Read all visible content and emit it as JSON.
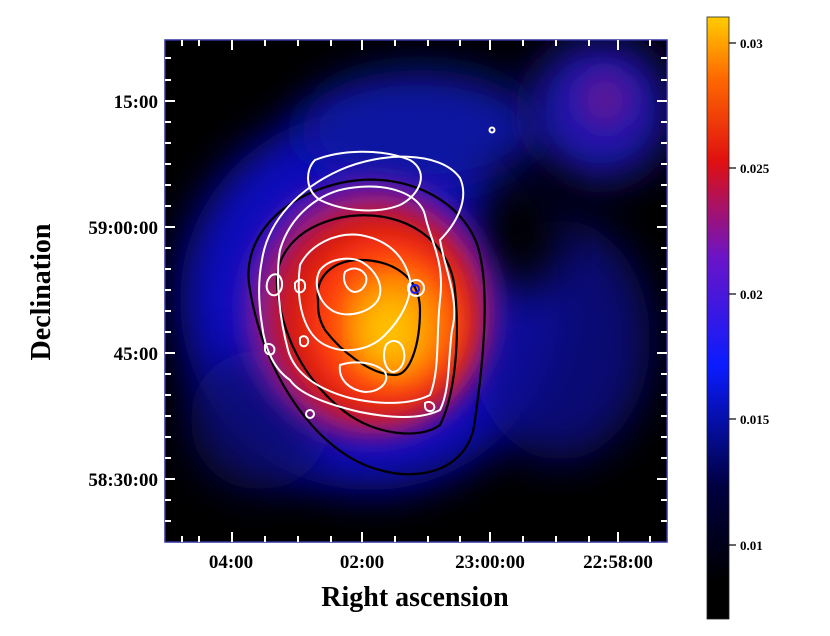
{
  "x_axis": {
    "title": "Right ascension",
    "ticks": [
      "04:00",
      "02:00",
      "23:00:00",
      "22:58:00"
    ]
  },
  "y_axis": {
    "title": "Declination",
    "ticks": [
      "15:00",
      "59:00:00",
      "45:00",
      "58:30:00"
    ]
  },
  "colorbar": {
    "ticks": [
      "0.03",
      "0.025",
      "0.02",
      "0.015",
      "0.01"
    ],
    "colors": [
      "#000000",
      "#0000ff",
      "#ff0000",
      "#ffcc00"
    ]
  }
}
